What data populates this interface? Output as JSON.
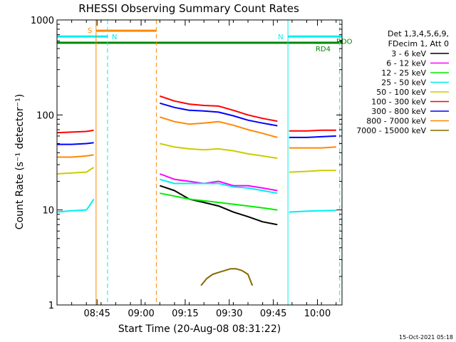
{
  "chart_data": {
    "type": "line",
    "title": "RHESSI Observing Summary Count Rates",
    "xlabel": "Start Time (20-Aug-08 08:31:22)",
    "ylabel": "Count Rate (s⁻¹ detector⁻¹)",
    "x_unit": "minutes after 08:31:22",
    "xlim": [
      0,
      97
    ],
    "ylim": [
      1,
      1000
    ],
    "yscale": "log",
    "x_ticks": [
      {
        "x": 13.63,
        "label": "08:45"
      },
      {
        "x": 28.63,
        "label": "09:00"
      },
      {
        "x": 43.63,
        "label": "09:15"
      },
      {
        "x": 58.63,
        "label": "09:30"
      },
      {
        "x": 73.63,
        "label": "09:45"
      },
      {
        "x": 88.63,
        "label": "10:00"
      }
    ],
    "y_ticks": [
      {
        "y": 1,
        "label": "1"
      },
      {
        "y": 10,
        "label": "10"
      },
      {
        "y": 100,
        "label": "100"
      },
      {
        "y": 1000,
        "label": "1000"
      }
    ],
    "legend": {
      "placement": "right",
      "header": [
        "Det 1,3,4,5,6,9,",
        "FDecim 1, Att 0"
      ]
    },
    "series": [
      {
        "name": "3 - 6 keV",
        "color": "#000000",
        "segments": [
          {
            "x": [
              35,
              40,
              45,
              50,
              55,
              60,
              65,
              70,
              75
            ],
            "y": [
              18,
              16,
              13,
              12,
              11,
              9.5,
              8.5,
              7.5,
              7
            ]
          }
        ]
      },
      {
        "name": "6 - 12 keV",
        "color": "#ff00ff",
        "segments": [
          {
            "x": [
              35,
              40,
              45,
              50,
              55,
              60,
              65,
              70,
              75
            ],
            "y": [
              24,
              21,
              20,
              19,
              20,
              18,
              18,
              17,
              16
            ]
          }
        ]
      },
      {
        "name": "12 - 25 keV",
        "color": "#00ee00",
        "segments": [
          {
            "x": [
              35,
              40,
              45,
              50,
              55,
              60,
              65,
              70,
              75
            ],
            "y": [
              15,
              14,
              13,
              12.5,
              12,
              11.5,
              11,
              10.5,
              10
            ]
          }
        ]
      },
      {
        "name": "25 - 50 keV",
        "color": "#00eeee",
        "segments": [
          {
            "x": [
              0,
              5,
              10,
              11,
              12.5
            ],
            "y": [
              9.5,
              9.8,
              10,
              11,
              13
            ]
          },
          {
            "x": [
              35,
              40,
              45,
              50,
              55,
              60,
              65,
              70,
              75
            ],
            "y": [
              21,
              19,
              19,
              19,
              19,
              17.5,
              17,
              16,
              15
            ]
          },
          {
            "x": [
              79,
              85,
              90,
              95
            ],
            "y": [
              9.5,
              9.7,
              9.8,
              9.9
            ]
          }
        ]
      },
      {
        "name": "50 - 100 keV",
        "color": "#cccc00",
        "segments": [
          {
            "x": [
              0,
              5,
              10,
              12.5
            ],
            "y": [
              24,
              24.5,
              25,
              28
            ]
          },
          {
            "x": [
              35,
              40,
              45,
              50,
              55,
              60,
              65,
              70,
              75
            ],
            "y": [
              50,
              46,
              44,
              43,
              44,
              42,
              39,
              37,
              35
            ]
          },
          {
            "x": [
              79,
              85,
              90,
              95
            ],
            "y": [
              25,
              25.5,
              26,
              26
            ]
          }
        ]
      },
      {
        "name": "100 - 300 keV",
        "color": "#ff0000",
        "segments": [
          {
            "x": [
              0,
              5,
              10,
              12.5
            ],
            "y": [
              65,
              66,
              67,
              69
            ]
          },
          {
            "x": [
              35,
              40,
              45,
              50,
              55,
              60,
              65,
              70,
              75
            ],
            "y": [
              158,
              140,
              130,
              126,
              124,
              112,
              100,
              92,
              86
            ]
          },
          {
            "x": [
              79,
              85,
              90,
              95
            ],
            "y": [
              68,
              68,
              69,
              69
            ]
          }
        ]
      },
      {
        "name": "300 - 800 keV",
        "color": "#0000ff",
        "segments": [
          {
            "x": [
              0,
              5,
              10,
              12.5
            ],
            "y": [
              49,
              49,
              50,
              51
            ]
          },
          {
            "x": [
              35,
              40,
              45,
              50,
              55,
              60,
              65,
              70,
              75
            ],
            "y": [
              133,
              120,
              112,
              110,
              107,
              98,
              88,
              82,
              77
            ]
          },
          {
            "x": [
              79,
              85,
              90,
              95
            ],
            "y": [
              58,
              58,
              59,
              60
            ]
          }
        ]
      },
      {
        "name": "800 - 7000 keV",
        "color": "#ff8800",
        "segments": [
          {
            "x": [
              0,
              5,
              10,
              12.5
            ],
            "y": [
              36,
              36,
              37,
              38
            ]
          },
          {
            "x": [
              35,
              40,
              45,
              50,
              55,
              60,
              65,
              70,
              75
            ],
            "y": [
              95,
              85,
              80,
              82,
              85,
              78,
              70,
              64,
              58
            ]
          },
          {
            "x": [
              79,
              85,
              90,
              95
            ],
            "y": [
              45,
              45,
              45,
              46
            ]
          }
        ]
      },
      {
        "name": "7000 - 15000 keV",
        "color": "#886600",
        "segments": [
          {
            "x": [
              49,
              51,
              53,
              55,
              57,
              59,
              61,
              63,
              65,
              66.5
            ],
            "y": [
              1.6,
              1.9,
              2.1,
              2.2,
              2.3,
              2.4,
              2.4,
              2.3,
              2.1,
              1.6
            ]
          }
        ]
      }
    ],
    "flags": [
      {
        "label": "S",
        "color": "#ff8800",
        "x_start": 13.3,
        "x_end": 33.8,
        "y": 770
      },
      {
        "label": "N",
        "color": "#00eeee",
        "x_start": 0,
        "x_end": 17.2,
        "y": 670
      },
      {
        "label": "N",
        "color": "#00eeee",
        "x_start": 78.6,
        "x_end": 97,
        "y": 670
      },
      {
        "label": "RD4",
        "color": "#008800",
        "x_start": 0,
        "x_end": 97,
        "y": 575
      },
      {
        "label": "RDO",
        "color": "#008800",
        "x_start": 96.2,
        "x_end": 97,
        "y": 600
      }
    ],
    "vlines": [
      {
        "x": 13.3,
        "color": "#ff8800",
        "style": "solid"
      },
      {
        "x": 17.2,
        "color": "#00eeee",
        "style": "dashed"
      },
      {
        "x": 33.8,
        "color": "#ff8800",
        "style": "dashed"
      },
      {
        "x": 78.6,
        "color": "#00eeee",
        "style": "solid"
      },
      {
        "x": 96.2,
        "color": "#00eeee",
        "style": "dashed"
      }
    ],
    "footer": "15-Oct-2021 05:18"
  }
}
